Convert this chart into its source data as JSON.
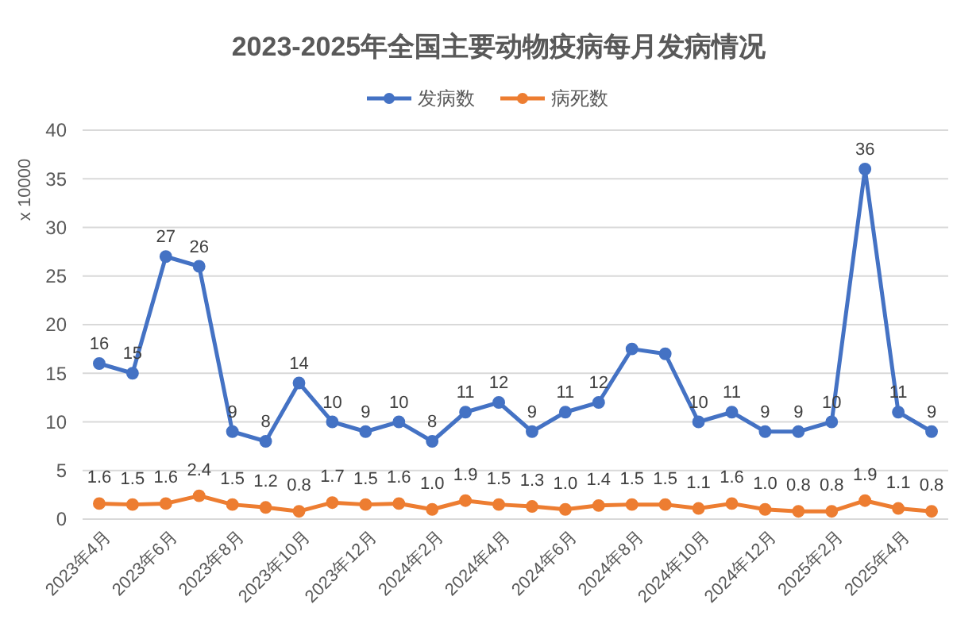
{
  "chart_data": {
    "type": "line",
    "title": "2023-2025年全国主要动物疫病每月发病情况",
    "ylabel": "x 10000",
    "categories": [
      "2023年4月",
      null,
      "2023年6月",
      null,
      "2023年8月",
      null,
      "2023年10月",
      null,
      "2023年12月",
      null,
      "2024年2月",
      null,
      "2024年4月",
      null,
      "2024年6月",
      null,
      "2024年8月",
      null,
      "2024年10月",
      null,
      "2024年12月",
      null,
      "2025年2月",
      null,
      "2025年4月",
      null
    ],
    "series": [
      {
        "name": "发病数",
        "color": "#4472c4",
        "values": [
          16,
          15,
          27,
          26,
          9,
          8,
          14,
          10,
          9,
          10,
          8,
          11,
          12,
          9,
          11,
          12,
          17.5,
          17,
          10,
          11,
          9,
          9,
          10,
          36,
          11,
          9
        ],
        "value_labels": [
          "16",
          "15",
          "27",
          "26",
          "9",
          "8",
          "14",
          "10",
          "9",
          "10",
          "8",
          "11",
          "12",
          "9",
          "11",
          "12",
          null,
          null,
          "10",
          "11",
          "9",
          "9",
          "10",
          "36",
          "11",
          "9"
        ]
      },
      {
        "name": "病死数",
        "color": "#ed7d31",
        "values": [
          1.6,
          1.5,
          1.6,
          2.4,
          1.5,
          1.2,
          0.8,
          1.7,
          1.5,
          1.6,
          1.0,
          1.9,
          1.5,
          1.3,
          1.0,
          1.4,
          1.5,
          1.5,
          1.1,
          1.6,
          1.0,
          0.8,
          0.8,
          1.9,
          1.1,
          0.8
        ],
        "value_labels": [
          "1.6",
          "1.5",
          "1.6",
          "2.4",
          "1.5",
          "1.2",
          "0.8",
          "1.7",
          "1.5",
          "1.6",
          "1.0",
          "1.9",
          "1.5",
          "1.3",
          "1.0",
          "1.4",
          "1.5",
          "1.5",
          "1.1",
          "1.6",
          "1.0",
          "0.8",
          "0.8",
          "1.9",
          "1.1",
          "0.8"
        ]
      }
    ],
    "ylim": [
      0,
      40
    ],
    "yticks": [
      0,
      5,
      10,
      15,
      20,
      25,
      30,
      35,
      40
    ],
    "grid": "y",
    "legend": "top",
    "marker": "circle",
    "line_style": "solid"
  }
}
